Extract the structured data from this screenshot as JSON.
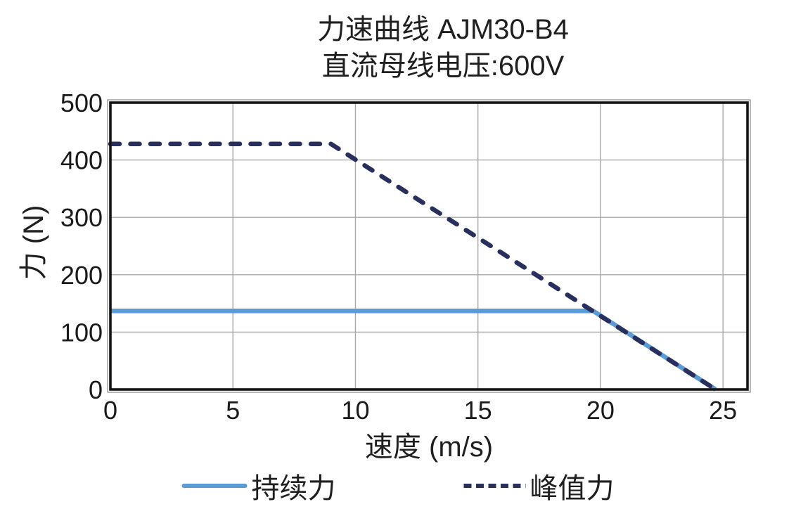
{
  "title": {
    "line1": "力速曲线 AJM30-B4",
    "line2": "直流母线电压:600V"
  },
  "chart_data": {
    "type": "line",
    "title": "力速曲线 AJM30-B4",
    "subtitle": "直流母线电压:600V",
    "xlabel": "速度 (m/s)",
    "ylabel": "力 (N)",
    "xlim": [
      0,
      26
    ],
    "ylim": [
      0,
      500
    ],
    "x_ticks": [
      0,
      5,
      10,
      15,
      20,
      25
    ],
    "y_ticks": [
      0,
      100,
      200,
      300,
      400,
      500
    ],
    "grid": true,
    "legend_position": "bottom",
    "series": [
      {
        "id": "continuous-force",
        "name": "持续力",
        "style": "solid",
        "color": "#5b9bd5",
        "points": [
          [
            0,
            137
          ],
          [
            19.7,
            137
          ],
          [
            24.7,
            0
          ]
        ]
      },
      {
        "id": "peak-force",
        "name": "峰值力",
        "style": "dashed",
        "color": "#282f5c",
        "points": [
          [
            0,
            428
          ],
          [
            9,
            428
          ],
          [
            24.7,
            0
          ]
        ]
      }
    ],
    "colors": {
      "gridline": "#a8a8a8",
      "frame": "#141414",
      "frame_outline": "#8f8f8f",
      "text": "#1a1a1a"
    }
  }
}
